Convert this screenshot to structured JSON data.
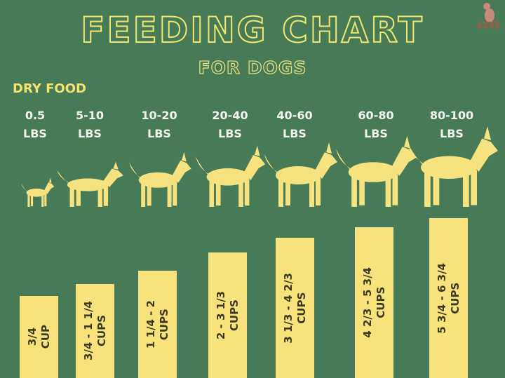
{
  "header": {
    "title": "FEEDING CHART",
    "subtitle": "FOR DOGS",
    "section": "DRY FOOD",
    "logo_text": "BARK"
  },
  "colors": {
    "background": "#477a56",
    "bar": "#f8e27c",
    "accent": "#f3e36f",
    "label": "#f3f4ee"
  },
  "chart_data": {
    "type": "bar",
    "title": "FEEDING CHART",
    "subtitle": "FOR DOGS",
    "categories": [
      "0.5 LBS",
      "5-10 LBS",
      "10-20 LBS",
      "20-40 LBS",
      "40-60 LBS",
      "60-80 LBS",
      "80-100 LBS"
    ],
    "weights": [
      {
        "range": "0.5",
        "unit": "LBS"
      },
      {
        "range": "5-10",
        "unit": "LBS"
      },
      {
        "range": "10-20",
        "unit": "LBS"
      },
      {
        "range": "20-40",
        "unit": "LBS"
      },
      {
        "range": "40-60",
        "unit": "LBS"
      },
      {
        "range": "60-80",
        "unit": "LBS"
      },
      {
        "range": "80-100",
        "unit": "LBS"
      }
    ],
    "series": [
      {
        "values_cups": [
          [
            0.75,
            0.75
          ],
          [
            0.75,
            1.25
          ],
          [
            1.25,
            2
          ],
          [
            2,
            3.333
          ],
          [
            3.333,
            4.667
          ],
          [
            4.667,
            5.75
          ],
          [
            5.75,
            6.75
          ]
        ],
        "labels": [
          {
            "amount": "3/4",
            "unit": "CUP"
          },
          {
            "amount": "3/4 - 1 1/4",
            "unit": "CUPS"
          },
          {
            "amount": "1 1/4 - 2",
            "unit": "CUPS"
          },
          {
            "amount": "2 - 3 1/3",
            "unit": "CUPS"
          },
          {
            "amount": "3 1/3 - 4 2/3",
            "unit": "CUPS"
          },
          {
            "amount": "4 2/3 - 5 3/4",
            "unit": "CUPS"
          },
          {
            "amount": "5 3/4 - 6 3/4",
            "unit": "CUPS"
          }
        ]
      }
    ],
    "grid": false,
    "legend": "none"
  }
}
